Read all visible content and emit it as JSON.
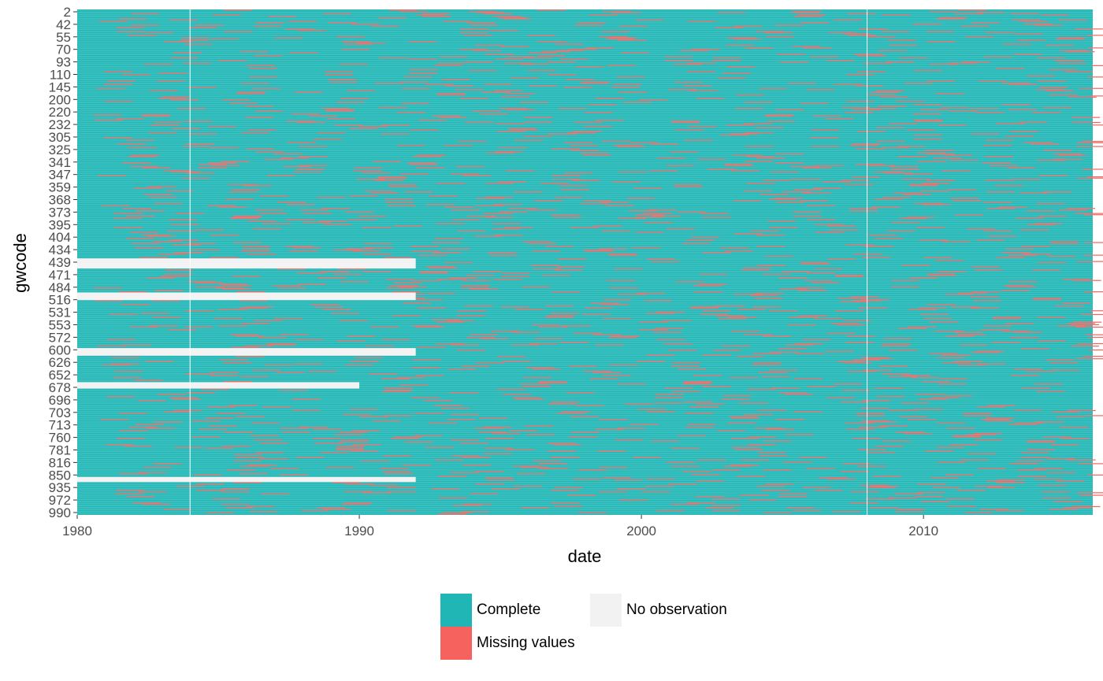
{
  "chart_data": {
    "type": "heatmap",
    "xlabel": "date",
    "ylabel": "gwcode",
    "xlim": [
      1980,
      2016
    ],
    "x_tick_labels": [
      "1980",
      "1990",
      "2000",
      "2010"
    ],
    "x_ticks": [
      1980,
      1990,
      2000,
      2010
    ],
    "y_tick_labels": [
      "2",
      "42",
      "55",
      "70",
      "93",
      "110",
      "145",
      "200",
      "220",
      "232",
      "305",
      "325",
      "341",
      "347",
      "359",
      "368",
      "373",
      "395",
      "404",
      "434",
      "439",
      "471",
      "484",
      "516",
      "531",
      "553",
      "572",
      "600",
      "626",
      "652",
      "678",
      "696",
      "703",
      "713",
      "760",
      "781",
      "816",
      "850",
      "935",
      "972",
      "990"
    ],
    "colors": {
      "complete": "#1fb6b5",
      "missing": "#f6635f",
      "no_observation": "#f2f2f2",
      "gridline": "#ffffff"
    },
    "legend": {
      "items": [
        {
          "label": "Complete",
          "color": "#1fb6b5"
        },
        {
          "label": "Missing values",
          "color": "#f6635f"
        },
        {
          "label": "No observation",
          "color": "#f2f2f2"
        }
      ],
      "position": "bottom"
    },
    "no_observation_blocks": [
      {
        "rows": [
          197,
          205
        ],
        "x": [
          1980,
          1992
        ]
      },
      {
        "rows": [
          224,
          230
        ],
        "x": [
          1980,
          1992
        ]
      },
      {
        "rows": [
          268,
          274
        ],
        "x": [
          1980,
          1992
        ]
      },
      {
        "rows": [
          295,
          300
        ],
        "x": [
          1980,
          1990
        ]
      },
      {
        "rows": [
          370,
          374
        ],
        "x": [
          1980,
          1992
        ]
      }
    ]
  }
}
